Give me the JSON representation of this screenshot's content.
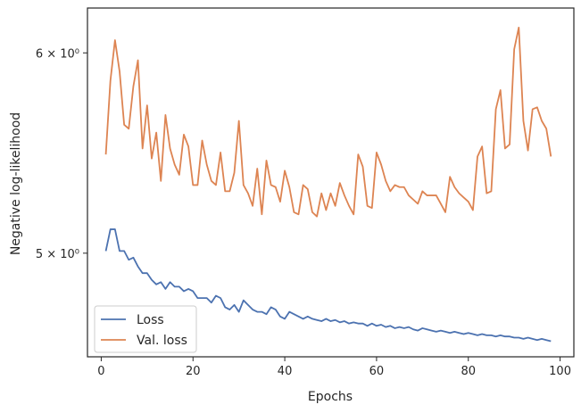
{
  "chart_data": {
    "type": "line",
    "title": "",
    "xlabel": "Epochs",
    "ylabel": "Negative log-likelihood",
    "yscale": "log",
    "xlim": [
      -3,
      103
    ],
    "ylim": [
      4.55,
      6.25
    ],
    "x_ticks": [
      0,
      20,
      40,
      60,
      80,
      100
    ],
    "x_tick_labels": [
      "0",
      "20",
      "40",
      "60",
      "80",
      "100"
    ],
    "y_ticks": [
      5,
      6
    ],
    "y_tick_labels": [
      "5 × 10⁰",
      "6 × 10⁰"
    ],
    "grid": false,
    "legend": {
      "position": "lower-left"
    },
    "x": [
      1,
      2,
      3,
      4,
      5,
      6,
      7,
      8,
      9,
      10,
      11,
      12,
      13,
      14,
      15,
      16,
      17,
      18,
      19,
      20,
      21,
      22,
      23,
      24,
      25,
      26,
      27,
      28,
      29,
      30,
      31,
      32,
      33,
      34,
      35,
      36,
      37,
      38,
      39,
      40,
      41,
      42,
      43,
      44,
      45,
      46,
      47,
      48,
      49,
      50,
      51,
      52,
      53,
      54,
      55,
      56,
      57,
      58,
      59,
      60,
      61,
      62,
      63,
      64,
      65,
      66,
      67,
      68,
      69,
      70,
      71,
      72,
      73,
      74,
      75,
      76,
      77,
      78,
      79,
      80,
      81,
      82,
      83,
      84,
      85,
      86,
      87,
      88,
      89,
      90,
      91,
      92,
      93,
      94,
      95,
      96,
      97,
      98
    ],
    "series": [
      {
        "name": "Loss",
        "color": "#4c72b0",
        "values": [
          5.01,
          5.11,
          5.11,
          5.01,
          5.01,
          4.97,
          4.98,
          4.94,
          4.91,
          4.91,
          4.88,
          4.86,
          4.87,
          4.84,
          4.87,
          4.85,
          4.85,
          4.83,
          4.84,
          4.83,
          4.8,
          4.8,
          4.8,
          4.78,
          4.81,
          4.8,
          4.76,
          4.75,
          4.77,
          4.74,
          4.79,
          4.77,
          4.75,
          4.74,
          4.74,
          4.73,
          4.76,
          4.75,
          4.72,
          4.71,
          4.74,
          4.73,
          4.72,
          4.71,
          4.72,
          4.71,
          4.705,
          4.7,
          4.71,
          4.7,
          4.705,
          4.695,
          4.7,
          4.69,
          4.695,
          4.69,
          4.69,
          4.68,
          4.69,
          4.68,
          4.685,
          4.675,
          4.68,
          4.67,
          4.675,
          4.67,
          4.675,
          4.665,
          4.66,
          4.67,
          4.665,
          4.66,
          4.655,
          4.66,
          4.655,
          4.65,
          4.655,
          4.65,
          4.645,
          4.65,
          4.645,
          4.64,
          4.645,
          4.64,
          4.64,
          4.635,
          4.64,
          4.635,
          4.635,
          4.63,
          4.63,
          4.625,
          4.63,
          4.625,
          4.62,
          4.625,
          4.62,
          4.615
        ]
      },
      {
        "name": "Val. loss",
        "color": "#dd8452",
        "values": [
          5.47,
          5.85,
          6.07,
          5.9,
          5.62,
          5.6,
          5.82,
          5.96,
          5.5,
          5.72,
          5.45,
          5.58,
          5.34,
          5.67,
          5.5,
          5.42,
          5.37,
          5.57,
          5.51,
          5.32,
          5.32,
          5.54,
          5.42,
          5.34,
          5.32,
          5.48,
          5.29,
          5.29,
          5.38,
          5.64,
          5.32,
          5.28,
          5.22,
          5.4,
          5.18,
          5.44,
          5.32,
          5.31,
          5.24,
          5.39,
          5.31,
          5.19,
          5.18,
          5.32,
          5.3,
          5.19,
          5.17,
          5.28,
          5.2,
          5.28,
          5.22,
          5.33,
          5.27,
          5.22,
          5.18,
          5.47,
          5.41,
          5.22,
          5.21,
          5.48,
          5.42,
          5.34,
          5.29,
          5.32,
          5.31,
          5.31,
          5.27,
          5.25,
          5.23,
          5.29,
          5.27,
          5.27,
          5.27,
          5.23,
          5.19,
          5.36,
          5.31,
          5.28,
          5.26,
          5.24,
          5.2,
          5.46,
          5.51,
          5.28,
          5.29,
          5.7,
          5.8,
          5.5,
          5.52,
          6.02,
          6.14,
          5.64,
          5.49,
          5.7,
          5.71,
          5.64,
          5.6,
          5.46
        ]
      }
    ]
  }
}
